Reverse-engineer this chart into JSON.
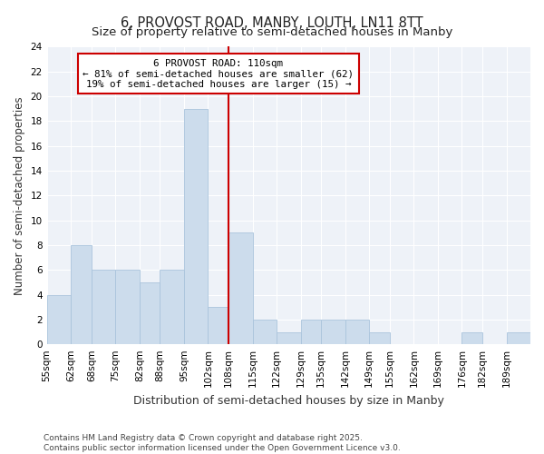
{
  "title": "6, PROVOST ROAD, MANBY, LOUTH, LN11 8TT",
  "subtitle": "Size of property relative to semi-detached houses in Manby",
  "xlabel": "Distribution of semi-detached houses by size in Manby",
  "ylabel": "Number of semi-detached properties",
  "categories": [
    "55sqm",
    "62sqm",
    "68sqm",
    "75sqm",
    "82sqm",
    "88sqm",
    "95sqm",
    "102sqm",
    "108sqm",
    "115sqm",
    "122sqm",
    "129sqm",
    "135sqm",
    "142sqm",
    "149sqm",
    "155sqm",
    "162sqm",
    "169sqm",
    "176sqm",
    "182sqm",
    "189sqm"
  ],
  "bin_edges": [
    55,
    62,
    68,
    75,
    82,
    88,
    95,
    102,
    108,
    115,
    122,
    129,
    135,
    142,
    149,
    155,
    162,
    169,
    176,
    182,
    189,
    196
  ],
  "values": [
    4,
    8,
    6,
    6,
    5,
    6,
    19,
    3,
    9,
    2,
    1,
    2,
    2,
    2,
    1,
    0,
    0,
    0,
    1,
    0,
    1
  ],
  "bar_color": "#ccdcec",
  "bar_edgecolor": "#aac4dc",
  "vline_x": 108,
  "vline_color": "#cc0000",
  "annotation_title": "6 PROVOST ROAD: 110sqm",
  "annotation_line1": "← 81% of semi-detached houses are smaller (62)",
  "annotation_line2": "19% of semi-detached houses are larger (15) →",
  "annotation_box_color": "#ffffff",
  "annotation_box_edgecolor": "#cc0000",
  "ylim": [
    0,
    24
  ],
  "yticks": [
    0,
    2,
    4,
    6,
    8,
    10,
    12,
    14,
    16,
    18,
    20,
    22,
    24
  ],
  "figure_background": "#ffffff",
  "plot_background": "#eef2f8",
  "grid_color": "#ffffff",
  "footer": "Contains HM Land Registry data © Crown copyright and database right 2025.\nContains public sector information licensed under the Open Government Licence v3.0.",
  "title_fontsize": 10.5,
  "subtitle_fontsize": 9.5,
  "ylabel_fontsize": 8.5,
  "xlabel_fontsize": 9,
  "tick_fontsize": 7.5,
  "footer_fontsize": 6.5
}
